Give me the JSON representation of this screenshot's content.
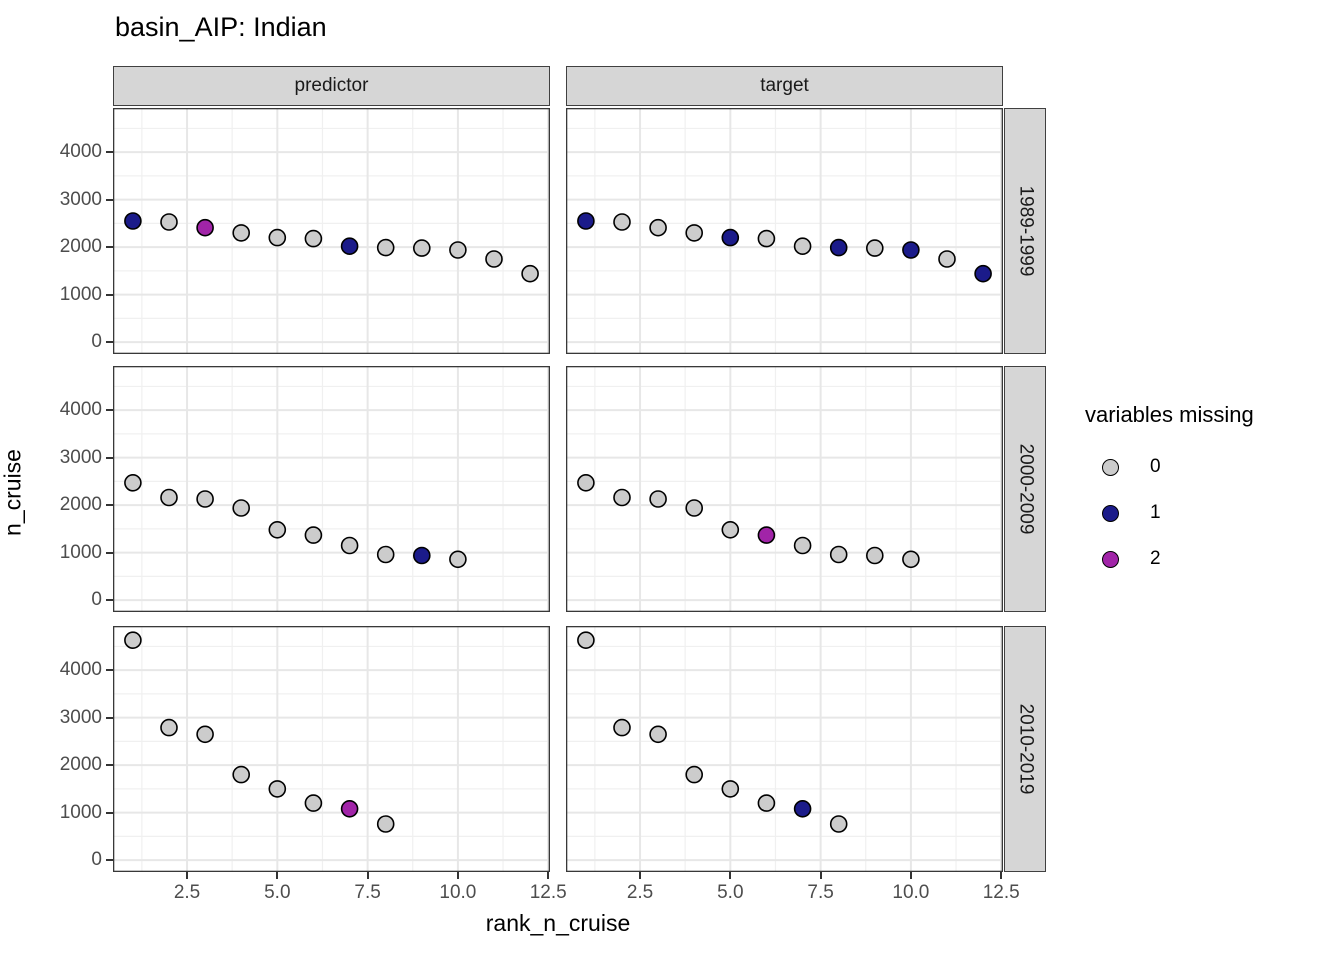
{
  "title": "basin_AIP: Indian",
  "axes": {
    "x_label": "rank_n_cruise",
    "y_label": "n_cruise",
    "x_tick_labels": [
      "2.5",
      "5.0",
      "7.5",
      "10.0",
      "12.5"
    ],
    "y_tick_labels": [
      "0",
      "1000",
      "2000",
      "3000",
      "4000"
    ]
  },
  "facets": {
    "col_labels": [
      "predictor",
      "target"
    ],
    "row_labels": [
      "1989-1999",
      "2000-2009",
      "2010-2019"
    ]
  },
  "legend": {
    "title": "variables missing",
    "items": [
      {
        "label": "0",
        "color": "#cccccc"
      },
      {
        "label": "1",
        "color": "#1b1b8a"
      },
      {
        "label": "2",
        "color": "#a124a8"
      }
    ]
  },
  "chart_data": {
    "type": "scatter",
    "title": "basin_AIP: Indian",
    "xlabel": "rank_n_cruise",
    "ylabel": "n_cruise",
    "x_ticks": [
      2.5,
      5.0,
      7.5,
      10.0,
      12.5
    ],
    "y_ticks": [
      0,
      1000,
      2000,
      3000,
      4000
    ],
    "x_domain": [
      0.45,
      12.55
    ],
    "y_domain": [
      -250,
      4930
    ],
    "grid": "major-and-minor",
    "legend_position": "right",
    "color_by": "variables missing",
    "color_map": {
      "0": "#cccccc",
      "1": "#1b1b8a",
      "2": "#a124a8"
    },
    "point_note": "points are [rank_n_cruise, n_cruise, variables_missing]",
    "panels": [
      {
        "col": "predictor",
        "row": "1989-1999",
        "points": [
          [
            1,
            2550,
            1
          ],
          [
            2,
            2530,
            0
          ],
          [
            3,
            2410,
            2
          ],
          [
            4,
            2300,
            0
          ],
          [
            5,
            2200,
            0
          ],
          [
            6,
            2180,
            0
          ],
          [
            7,
            2020,
            1
          ],
          [
            8,
            1990,
            0
          ],
          [
            9,
            1980,
            0
          ],
          [
            10,
            1940,
            0
          ],
          [
            11,
            1750,
            0
          ],
          [
            12,
            1440,
            0
          ]
        ]
      },
      {
        "col": "target",
        "row": "1989-1999",
        "points": [
          [
            1,
            2550,
            1
          ],
          [
            2,
            2530,
            0
          ],
          [
            3,
            2410,
            0
          ],
          [
            4,
            2300,
            0
          ],
          [
            5,
            2200,
            1
          ],
          [
            6,
            2180,
            0
          ],
          [
            7,
            2020,
            0
          ],
          [
            8,
            1990,
            1
          ],
          [
            9,
            1980,
            0
          ],
          [
            10,
            1940,
            1
          ],
          [
            11,
            1750,
            0
          ],
          [
            12,
            1440,
            1
          ]
        ]
      },
      {
        "col": "predictor",
        "row": "2000-2009",
        "points": [
          [
            1,
            2470,
            0
          ],
          [
            2,
            2160,
            0
          ],
          [
            3,
            2130,
            0
          ],
          [
            4,
            1940,
            0
          ],
          [
            5,
            1480,
            0
          ],
          [
            6,
            1370,
            0
          ],
          [
            7,
            1150,
            0
          ],
          [
            8,
            960,
            0
          ],
          [
            9,
            940,
            1
          ],
          [
            10,
            860,
            0
          ]
        ]
      },
      {
        "col": "target",
        "row": "2000-2009",
        "points": [
          [
            1,
            2470,
            0
          ],
          [
            2,
            2160,
            0
          ],
          [
            3,
            2130,
            0
          ],
          [
            4,
            1940,
            0
          ],
          [
            5,
            1480,
            0
          ],
          [
            6,
            1370,
            2
          ],
          [
            7,
            1150,
            0
          ],
          [
            8,
            960,
            0
          ],
          [
            9,
            940,
            0
          ],
          [
            10,
            860,
            0
          ]
        ]
      },
      {
        "col": "predictor",
        "row": "2010-2019",
        "points": [
          [
            1,
            4630,
            0
          ],
          [
            2,
            2790,
            0
          ],
          [
            3,
            2650,
            0
          ],
          [
            4,
            1800,
            0
          ],
          [
            5,
            1500,
            0
          ],
          [
            6,
            1200,
            0
          ],
          [
            7,
            1080,
            2
          ],
          [
            8,
            760,
            0
          ]
        ]
      },
      {
        "col": "target",
        "row": "2010-2019",
        "points": [
          [
            1,
            4630,
            0
          ],
          [
            2,
            2790,
            0
          ],
          [
            3,
            2650,
            0
          ],
          [
            4,
            1800,
            0
          ],
          [
            5,
            1500,
            0
          ],
          [
            6,
            1200,
            0
          ],
          [
            7,
            1080,
            1
          ],
          [
            8,
            760,
            0
          ]
        ]
      }
    ]
  }
}
